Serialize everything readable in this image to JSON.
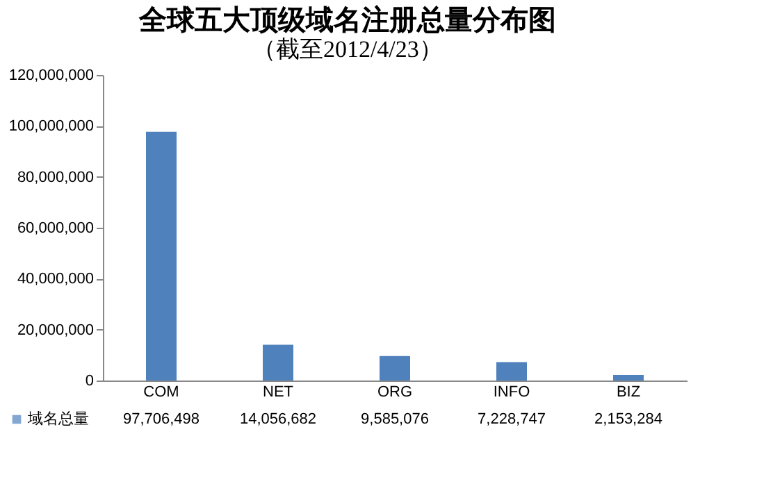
{
  "chart_data": {
    "type": "bar",
    "title": "全球五大顶级域名注册总量分布图",
    "subtitle": "（截至2012/4/23）",
    "categories": [
      "COM",
      "NET",
      "ORG",
      "INFO",
      "BIZ"
    ],
    "series": [
      {
        "name": "域名总量",
        "color": "#4f81bd",
        "values": [
          97706498,
          14056682,
          9585076,
          7228747,
          2153284
        ],
        "value_labels": [
          "97,706,498",
          "14,056,682",
          "9,585,076",
          "7,228,747",
          "2,153,284"
        ]
      }
    ],
    "ylim": [
      0,
      120000000
    ],
    "yticks": [
      0,
      {
        "value": 20000000,
        "label": "20,000,000"
      },
      {
        "value": 40000000,
        "label": "40,000,000"
      },
      {
        "value": 60000000,
        "label": "60,000,000"
      },
      {
        "value": 80000000,
        "label": "80,000,000"
      },
      {
        "value": 100000000,
        "label": "100,000,000"
      },
      {
        "value": 120000000,
        "label": "120,000,000"
      }
    ],
    "grid": false,
    "legend": "bottom"
  }
}
